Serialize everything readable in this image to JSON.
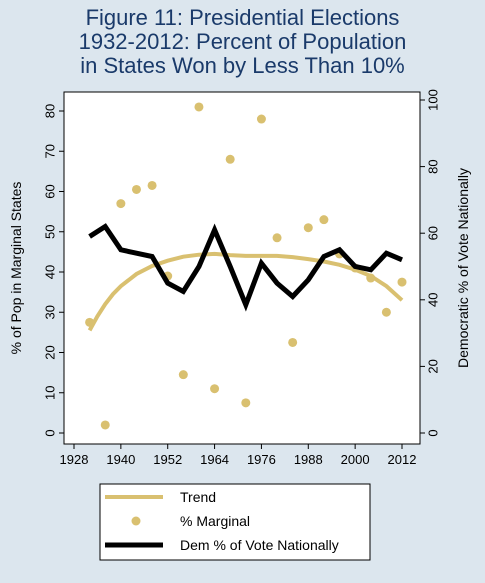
{
  "title_lines": [
    "Figure 11: Presidential Elections",
    "1932-2012: Percent of Population",
    "in States Won by Less Than 10%"
  ],
  "chart_data": {
    "type": "scatter",
    "xlim": [
      1928,
      2012
    ],
    "x_ticks": [
      "1928",
      "1940",
      "1952",
      "1964",
      "1976",
      "1988",
      "2000",
      "2012"
    ],
    "y_left": {
      "label": "% of Pop in Marginal States",
      "lim": [
        0,
        80
      ],
      "ticks": [
        "0",
        "10",
        "20",
        "30",
        "40",
        "50",
        "60",
        "70",
        "80"
      ]
    },
    "y_right": {
      "label": "Democratic % of Vote Nationally",
      "lim": [
        0,
        100
      ],
      "ticks": [
        "0",
        "20",
        "40",
        "60",
        "80",
        "100"
      ]
    },
    "grid": false,
    "legend_position": "bottom",
    "series": [
      {
        "name": "Trend",
        "kind": "line",
        "axis": "left",
        "color": "#d9c070",
        "x": [
          1932,
          1934,
          1936,
          1938,
          1940,
          1944,
          1948,
          1952,
          1956,
          1960,
          1964,
          1968,
          1972,
          1976,
          1980,
          1984,
          1988,
          1992,
          1996,
          2000,
          2004,
          2008,
          2012
        ],
        "y": [
          25.5,
          29.0,
          32.0,
          34.5,
          36.5,
          39.5,
          41.5,
          42.8,
          43.8,
          44.3,
          44.5,
          44.2,
          44.0,
          44.0,
          44.0,
          43.7,
          43.2,
          42.6,
          41.8,
          40.6,
          39.0,
          36.5,
          33.0
        ]
      },
      {
        "name": "% Marginal",
        "kind": "scatter",
        "axis": "left",
        "color": "#d9c070",
        "x": [
          1932,
          1936,
          1940,
          1944,
          1948,
          1952,
          1956,
          1960,
          1964,
          1968,
          1972,
          1976,
          1980,
          1984,
          1988,
          1992,
          1996,
          2000,
          2004,
          2008,
          2012
        ],
        "y": [
          27.5,
          2,
          57,
          60.5,
          61.5,
          39,
          14.5,
          81,
          11,
          68,
          7.5,
          78,
          48.5,
          22.5,
          51,
          53,
          44.5,
          41,
          38.5,
          30,
          37.5
        ]
      },
      {
        "name": "Dem % of Vote Nationally",
        "kind": "line",
        "axis": "right",
        "color": "#000000",
        "x": [
          1932,
          1936,
          1940,
          1944,
          1948,
          1952,
          1956,
          1960,
          1964,
          1968,
          1972,
          1976,
          1980,
          1984,
          1988,
          1992,
          1996,
          2000,
          2004,
          2008,
          2012
        ],
        "y": [
          59,
          62,
          55,
          54,
          53,
          45,
          42.5,
          50,
          61,
          50,
          38.5,
          51,
          45,
          41,
          46,
          53,
          55,
          50,
          49,
          54,
          52
        ]
      }
    ]
  }
}
